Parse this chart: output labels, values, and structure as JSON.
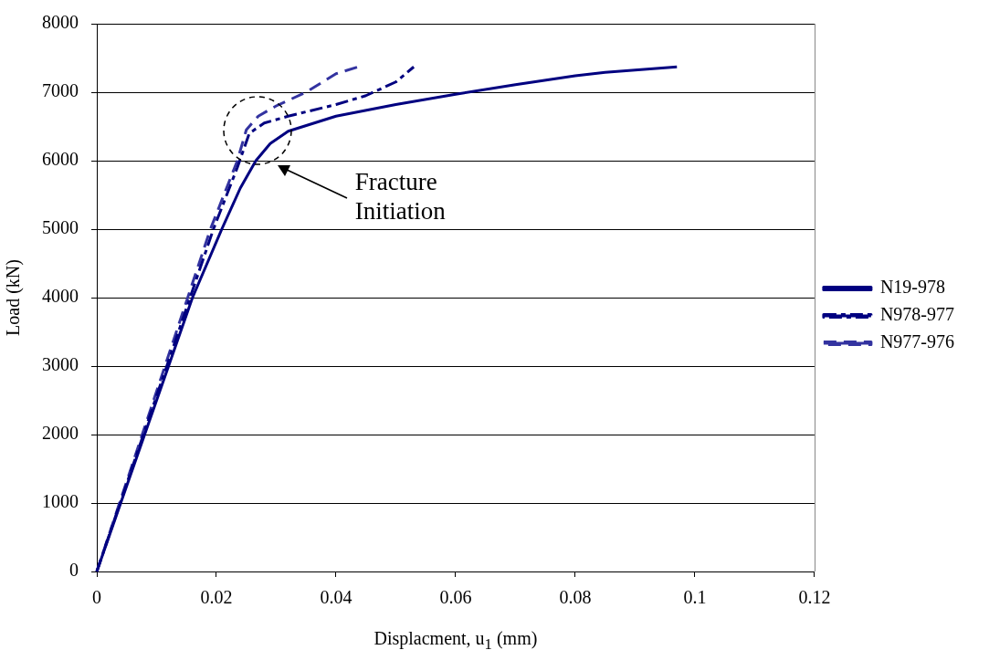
{
  "chart_data": {
    "type": "line",
    "xlabel": "Displacment, u$_{1}$ (mm)",
    "ylabel": "Load (kN)",
    "xlim": [
      0,
      0.12
    ],
    "xticks": [
      0,
      0.02,
      0.04,
      0.06,
      0.08,
      0.1,
      0.12
    ],
    "ylim": [
      0,
      8000
    ],
    "yticks": [
      0,
      1000,
      2000,
      3000,
      4000,
      5000,
      6000,
      7000,
      8000
    ],
    "grid": "y",
    "legend": "right",
    "marker": "none",
    "annotations": [
      "Fracture Initiation"
    ],
    "series": [
      {
        "name": "N19-978",
        "color": "#000080",
        "line_style": "solid",
        "x": [
          0,
          0.004,
          0.008,
          0.012,
          0.016,
          0.0209,
          0.024,
          0.0266,
          0.029,
          0.032,
          0.04,
          0.05,
          0.06,
          0.07,
          0.08,
          0.085,
          0.097
        ],
        "values": [
          0,
          1000,
          2000,
          3000,
          4000,
          5000,
          5600,
          6000,
          6250,
          6430,
          6650,
          6820,
          6970,
          7110,
          7240,
          7290,
          7370
        ]
      },
      {
        "name": "N978-977",
        "color": "#000080",
        "line_style": "dashdot",
        "x": [
          0,
          0.0195,
          0.0235,
          0.0255,
          0.028,
          0.032,
          0.04,
          0.045,
          0.05,
          0.053
        ],
        "values": [
          0,
          5000,
          5900,
          6400,
          6550,
          6650,
          6820,
          6950,
          7150,
          7370
        ]
      },
      {
        "name": "N977-976",
        "color": "#3333a0",
        "line_style": "dashed",
        "x": [
          0,
          0.019,
          0.0235,
          0.025,
          0.027,
          0.03,
          0.035,
          0.04,
          0.0437
        ],
        "values": [
          0,
          5000,
          6000,
          6450,
          6650,
          6800,
          7000,
          7270,
          7370
        ]
      }
    ]
  }
}
